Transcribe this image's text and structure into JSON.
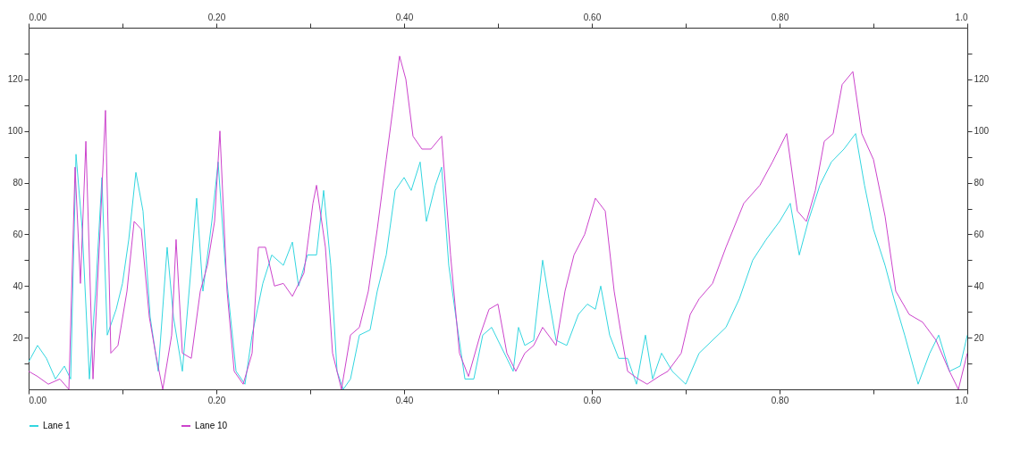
{
  "chart_data": {
    "type": "line",
    "x": [
      0,
      0.0095,
      0.019,
      0.0286,
      0.0381,
      0.0448,
      0.0505,
      0.0571,
      0.0648,
      0.0714,
      0.0781,
      0.0838,
      0.0933,
      0.1,
      0.1067,
      0.1143,
      0.1219,
      0.1295,
      0.1381,
      0.1476,
      0.1543,
      0.1638,
      0.1733,
      0.179,
      0.1857,
      0.1952,
      0.2019,
      0.2095,
      0.221,
      0.2305,
      0.2381,
      0.2495,
      0.259,
      0.2714,
      0.281,
      0.2876,
      0.2971,
      0.3067,
      0.3143,
      0.3219,
      0.3286,
      0.3352,
      0.3429,
      0.3524,
      0.3638,
      0.3714,
      0.381,
      0.3905,
      0.4,
      0.4076,
      0.4171,
      0.4238,
      0.4333,
      0.44,
      0.4476,
      0.4552,
      0.4648,
      0.4743,
      0.4838,
      0.4933,
      0.5,
      0.5095,
      0.5162,
      0.5219,
      0.5286,
      0.5381,
      0.5476,
      0.5543,
      0.5619,
      0.5733,
      0.5857,
      0.5952,
      0.6038,
      0.6095,
      0.619,
      0.6286,
      0.6381,
      0.6476,
      0.6571,
      0.6648,
      0.6743,
      0.6857,
      0.7,
      0.7143,
      0.7286,
      0.7429,
      0.7571,
      0.7714,
      0.7857,
      0.8,
      0.8114,
      0.821,
      0.8305,
      0.8429,
      0.8552,
      0.8686,
      0.881,
      0.8905,
      0.9,
      0.9124,
      0.9219,
      0.9333,
      0.9476,
      0.96,
      0.9695,
      0.981,
      0.9924,
      1
    ],
    "series": [
      {
        "name": "Lane 1",
        "color": "#33d6e0",
        "values": [
          10.6,
          17,
          12,
          4,
          9,
          4,
          91,
          62,
          4,
          38,
          82,
          21,
          31,
          41,
          58,
          84,
          69,
          28,
          7,
          55,
          28,
          7,
          48,
          74,
          38,
          65,
          88,
          48,
          7,
          2,
          21,
          41,
          52,
          48,
          57,
          40,
          52,
          52,
          77,
          48,
          7,
          0,
          4,
          21,
          23,
          38,
          52,
          77,
          82,
          77,
          88,
          65,
          79,
          86,
          48,
          28,
          4,
          4,
          21,
          24,
          19,
          12,
          7,
          24,
          17,
          19,
          50,
          35,
          19,
          17,
          29,
          33,
          31,
          40,
          21,
          12,
          12,
          2,
          21,
          4,
          14,
          7,
          2,
          14,
          19,
          24,
          35,
          50,
          58,
          65,
          72,
          52,
          65,
          79,
          88,
          93,
          99,
          79,
          62,
          48,
          35,
          21,
          2,
          14,
          21,
          7,
          9,
          21
        ]
      },
      {
        "name": "Lane 10",
        "color": "#cc44cc",
        "x": [
          0,
          0.0095,
          0.021,
          0.0333,
          0.0429,
          0.0495,
          0.0552,
          0.061,
          0.0686,
          0.0762,
          0.0819,
          0.0876,
          0.0952,
          0.1048,
          0.1124,
          0.12,
          0.1286,
          0.1352,
          0.1429,
          0.1524,
          0.1571,
          0.1638,
          0.1733,
          0.1829,
          0.1905,
          0.1981,
          0.2038,
          0.2114,
          0.219,
          0.2286,
          0.2381,
          0.2448,
          0.2524,
          0.2619,
          0.2714,
          0.281,
          0.2933,
          0.3029,
          0.3067,
          0.3162,
          0.3238,
          0.3333,
          0.3429,
          0.3524,
          0.3619,
          0.3714,
          0.381,
          0.3886,
          0.3952,
          0.4019,
          0.4095,
          0.419,
          0.4286,
          0.44,
          0.4495,
          0.459,
          0.4686,
          0.481,
          0.4905,
          0.5,
          0.5095,
          0.519,
          0.5286,
          0.5381,
          0.5476,
          0.5619,
          0.5714,
          0.581,
          0.5924,
          0.6038,
          0.6143,
          0.6238,
          0.6305,
          0.6381,
          0.6495,
          0.659,
          0.6714,
          0.681,
          0.6952,
          0.7048,
          0.7143,
          0.7286,
          0.7429,
          0.7619,
          0.779,
          0.7924,
          0.8076,
          0.819,
          0.8286,
          0.8381,
          0.8476,
          0.8571,
          0.8667,
          0.8781,
          0.8876,
          0.9,
          0.9124,
          0.9238,
          0.9381,
          0.9524,
          0.9667,
          0.981,
          0.9905,
          1
        ],
        "values": [
          7,
          5,
          2,
          4,
          0,
          86,
          41,
          96,
          4,
          62,
          108,
          14,
          17,
          38,
          65,
          62,
          28,
          14,
          0,
          21,
          58,
          14,
          12,
          38,
          48,
          65,
          100,
          38,
          7,
          2,
          14,
          55,
          55,
          40,
          41,
          36,
          45,
          72,
          79,
          55,
          14,
          0,
          21,
          24,
          38,
          62,
          89,
          110,
          129,
          120,
          98,
          93,
          93,
          98,
          52,
          14,
          5,
          21,
          31,
          33,
          14,
          7,
          14,
          17,
          24,
          17,
          38,
          52,
          60,
          74,
          69,
          38,
          23,
          7,
          4,
          2,
          5,
          7,
          14,
          29,
          35,
          41,
          55,
          72,
          79,
          88,
          99,
          69,
          65,
          77,
          96,
          99,
          118,
          123,
          99,
          89,
          67,
          38,
          29,
          26,
          19,
          7,
          0,
          14
        ]
      }
    ],
    "xlim": [
      0,
      1
    ],
    "xticks": [
      {
        "value": 0,
        "label": "0.00"
      },
      {
        "value": 0.1,
        "label": null
      },
      {
        "value": 0.2,
        "label": "0.20"
      },
      {
        "value": 0.3,
        "label": null
      },
      {
        "value": 0.4,
        "label": "0.40"
      },
      {
        "value": 0.5,
        "label": null
      },
      {
        "value": 0.6,
        "label": "0.60"
      },
      {
        "value": 0.7,
        "label": null
      },
      {
        "value": 0.8,
        "label": "0.80"
      },
      {
        "value": 0.9,
        "label": null
      },
      {
        "value": 1,
        "label": "1.0"
      }
    ],
    "x2lim": [
      0,
      1
    ],
    "x2ticks": [
      {
        "value": 0,
        "label": "0.00"
      },
      {
        "value": 0.1,
        "label": null
      },
      {
        "value": 0.2,
        "label": "0.20"
      },
      {
        "value": 0.3,
        "label": null
      },
      {
        "value": 0.4,
        "label": "0.40"
      },
      {
        "value": 0.5,
        "label": null
      },
      {
        "value": 0.6,
        "label": "0.60"
      },
      {
        "value": 0.7,
        "label": null
      },
      {
        "value": 0.8,
        "label": "0.80"
      },
      {
        "value": 0.9,
        "label": null
      },
      {
        "value": 1,
        "label": "1.0"
      }
    ],
    "ylim": [
      0,
      140
    ],
    "yticks": [
      {
        "value": 10,
        "label": null
      },
      20,
      {
        "value": 30,
        "label": null
      },
      40,
      {
        "value": 50,
        "label": null
      },
      60,
      {
        "value": 70,
        "label": null
      },
      80,
      {
        "value": 90,
        "label": null
      },
      100,
      {
        "value": 110,
        "label": null
      },
      120,
      {
        "value": 130,
        "label": null
      }
    ],
    "y2lim": [
      0,
      140
    ],
    "y2ticks": [
      {
        "value": 10,
        "label": null
      },
      20,
      {
        "value": 30,
        "label": null
      },
      40,
      {
        "value": 50,
        "label": null
      },
      60,
      {
        "value": 70,
        "label": null
      },
      80,
      {
        "value": 90,
        "label": null
      },
      100,
      {
        "value": 110,
        "label": null
      },
      120,
      {
        "value": 130,
        "label": null
      }
    ],
    "legend": "bottom left",
    "grid": false,
    "marker": "none",
    "line_style": "solid"
  }
}
